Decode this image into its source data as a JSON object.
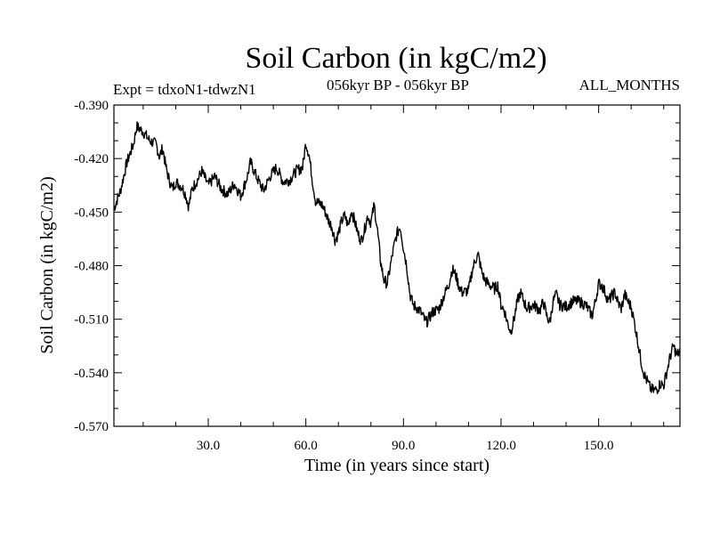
{
  "chart_data": {
    "type": "line",
    "title": "Soil Carbon (in kgC/m2)",
    "subtitle_left": "Expt = tdxoN1-tdwzN1",
    "subtitle_center": "056kyr BP - 056kyr BP",
    "subtitle_right": "ALL_MONTHS",
    "xlabel": "Time (in years since start)",
    "ylabel": "Soil Carbon (in kgC/m2)",
    "xlim": [
      1,
      175
    ],
    "ylim": [
      -0.57,
      -0.39
    ],
    "x_ticks": [
      30,
      60,
      90,
      120,
      150
    ],
    "x_tick_labels": [
      "30.0",
      "60.0",
      "90.0",
      "120.0",
      "150.0"
    ],
    "y_ticks": [
      -0.39,
      -0.42,
      -0.45,
      -0.48,
      -0.51,
      -0.54,
      -0.57
    ],
    "y_tick_labels": [
      "-0.390",
      "-0.420",
      "-0.450",
      "-0.480",
      "-0.510",
      "-0.540",
      "-0.570"
    ],
    "grid": false,
    "line_color": "#000000",
    "series": [
      {
        "name": "Soil Carbon",
        "keypoints": [
          [
            1,
            -0.448
          ],
          [
            3,
            -0.438
          ],
          [
            5,
            -0.422
          ],
          [
            7,
            -0.412
          ],
          [
            8,
            -0.402
          ],
          [
            10,
            -0.405
          ],
          [
            12,
            -0.41
          ],
          [
            14,
            -0.412
          ],
          [
            15,
            -0.419
          ],
          [
            16,
            -0.414
          ],
          [
            17,
            -0.425
          ],
          [
            18,
            -0.432
          ],
          [
            19,
            -0.437
          ],
          [
            20,
            -0.433
          ],
          [
            22,
            -0.436
          ],
          [
            23,
            -0.44
          ],
          [
            24,
            -0.447
          ],
          [
            25,
            -0.437
          ],
          [
            27,
            -0.431
          ],
          [
            28,
            -0.427
          ],
          [
            30,
            -0.435
          ],
          [
            32,
            -0.43
          ],
          [
            34,
            -0.437
          ],
          [
            36,
            -0.44
          ],
          [
            38,
            -0.434
          ],
          [
            40,
            -0.441
          ],
          [
            42,
            -0.43
          ],
          [
            43,
            -0.422
          ],
          [
            45,
            -0.431
          ],
          [
            47,
            -0.438
          ],
          [
            49,
            -0.43
          ],
          [
            51,
            -0.425
          ],
          [
            53,
            -0.433
          ],
          [
            55,
            -0.432
          ],
          [
            57,
            -0.427
          ],
          [
            59,
            -0.425
          ],
          [
            60,
            -0.411
          ],
          [
            61,
            -0.418
          ],
          [
            62,
            -0.432
          ],
          [
            63,
            -0.444
          ],
          [
            65,
            -0.446
          ],
          [
            66,
            -0.45
          ],
          [
            67,
            -0.455
          ],
          [
            68,
            -0.458
          ],
          [
            69,
            -0.466
          ],
          [
            70,
            -0.462
          ],
          [
            71,
            -0.455
          ],
          [
            72,
            -0.452
          ],
          [
            73,
            -0.458
          ],
          [
            74,
            -0.449
          ],
          [
            75,
            -0.455
          ],
          [
            76,
            -0.462
          ],
          [
            77,
            -0.466
          ],
          [
            78,
            -0.46
          ],
          [
            79,
            -0.452
          ],
          [
            80,
            -0.456
          ],
          [
            81,
            -0.446
          ],
          [
            82,
            -0.46
          ],
          [
            83,
            -0.478
          ],
          [
            84,
            -0.488
          ],
          [
            85,
            -0.49
          ],
          [
            86,
            -0.48
          ],
          [
            87,
            -0.47
          ],
          [
            88,
            -0.462
          ],
          [
            89,
            -0.458
          ],
          [
            90,
            -0.47
          ],
          [
            91,
            -0.48
          ],
          [
            92,
            -0.496
          ],
          [
            93,
            -0.502
          ],
          [
            95,
            -0.505
          ],
          [
            97,
            -0.512
          ],
          [
            99,
            -0.506
          ],
          [
            101,
            -0.504
          ],
          [
            102,
            -0.499
          ],
          [
            104,
            -0.49
          ],
          [
            105,
            -0.482
          ],
          [
            106,
            -0.485
          ],
          [
            107,
            -0.491
          ],
          [
            108,
            -0.495
          ],
          [
            110,
            -0.494
          ],
          [
            111,
            -0.484
          ],
          [
            112,
            -0.477
          ],
          [
            113,
            -0.474
          ],
          [
            114,
            -0.483
          ],
          [
            115,
            -0.488
          ],
          [
            116,
            -0.49
          ],
          [
            118,
            -0.493
          ],
          [
            119,
            -0.491
          ],
          [
            120,
            -0.502
          ],
          [
            121,
            -0.505
          ],
          [
            122,
            -0.512
          ],
          [
            123,
            -0.517
          ],
          [
            124,
            -0.51
          ],
          [
            125,
            -0.5
          ],
          [
            126,
            -0.495
          ],
          [
            127,
            -0.5
          ],
          [
            128,
            -0.504
          ],
          [
            130,
            -0.502
          ],
          [
            132,
            -0.505
          ],
          [
            133,
            -0.5
          ],
          [
            134,
            -0.508
          ],
          [
            135,
            -0.512
          ],
          [
            136,
            -0.5
          ],
          [
            137,
            -0.496
          ],
          [
            138,
            -0.502
          ],
          [
            140,
            -0.503
          ],
          [
            142,
            -0.5
          ],
          [
            144,
            -0.5
          ],
          [
            146,
            -0.502
          ],
          [
            147,
            -0.505
          ],
          [
            148,
            -0.508
          ],
          [
            149,
            -0.5
          ],
          [
            150,
            -0.49
          ],
          [
            151,
            -0.491
          ],
          [
            152,
            -0.495
          ],
          [
            153,
            -0.5
          ],
          [
            154,
            -0.497
          ],
          [
            155,
            -0.495
          ],
          [
            156,
            -0.501
          ],
          [
            157,
            -0.504
          ],
          [
            158,
            -0.496
          ],
          [
            159,
            -0.5
          ],
          [
            160,
            -0.503
          ],
          [
            161,
            -0.512
          ],
          [
            162,
            -0.522
          ],
          [
            163,
            -0.533
          ],
          [
            164,
            -0.541
          ],
          [
            165,
            -0.545
          ],
          [
            166,
            -0.549
          ],
          [
            167,
            -0.55
          ],
          [
            168,
            -0.549
          ],
          [
            169,
            -0.546
          ],
          [
            170,
            -0.547
          ],
          [
            171,
            -0.539
          ],
          [
            172,
            -0.531
          ],
          [
            173,
            -0.525
          ],
          [
            174,
            -0.53
          ],
          [
            175,
            -0.528
          ]
        ]
      }
    ]
  }
}
